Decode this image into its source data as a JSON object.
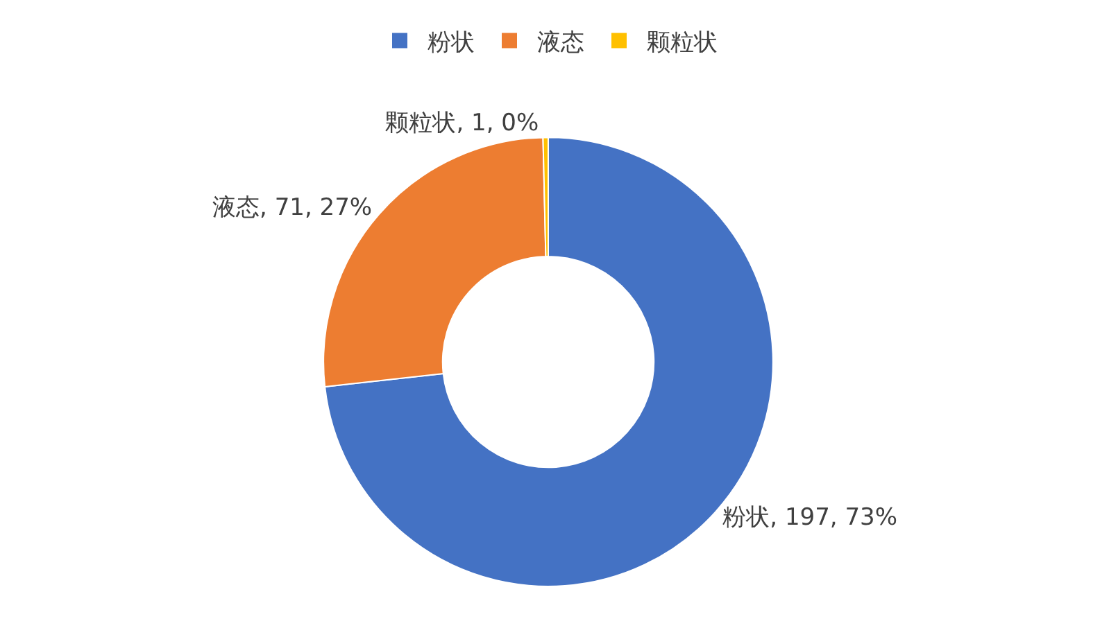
{
  "chart_data": {
    "type": "donut",
    "categories": [
      "粉状",
      "液态",
      "颗粒状"
    ],
    "values": [
      197,
      71,
      1
    ],
    "colors": [
      "#4472c4",
      "#ed7d31",
      "#ffc000"
    ],
    "value_labels": [
      "粉状, 197, 73%",
      "液态, 71, 27%",
      "颗粒状, 1, 0%"
    ],
    "legend": "top"
  }
}
